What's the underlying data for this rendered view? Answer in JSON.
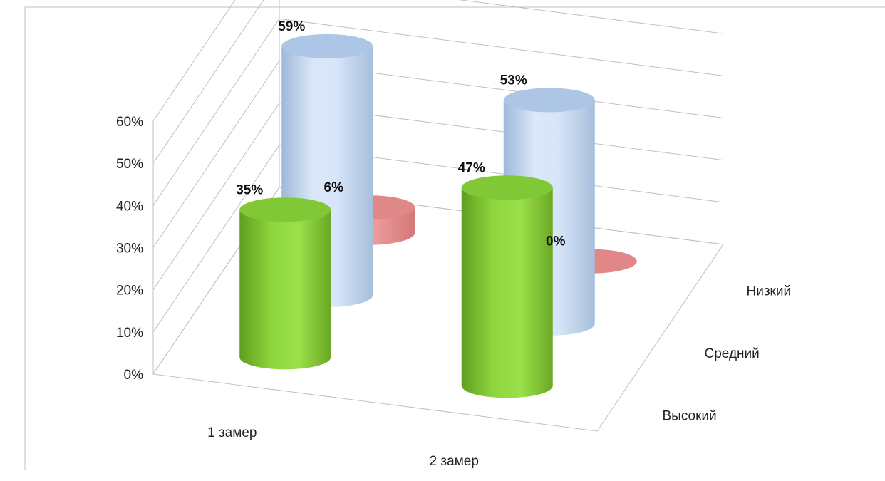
{
  "chart_data": {
    "type": "bar",
    "style": "3d-cylinder",
    "categories": [
      "1 замер",
      "2 замер"
    ],
    "series": [
      {
        "name": "Высокий",
        "values": [
          35,
          47
        ],
        "labels": [
          "35%",
          "47%"
        ],
        "color": "#8dd63c"
      },
      {
        "name": "Средний",
        "values": [
          59,
          53
        ],
        "labels": [
          "59%",
          "53%"
        ],
        "color": "#c7dbf6"
      },
      {
        "name": "Низкий",
        "values": [
          6,
          0
        ],
        "labels": [
          "6%",
          "0%"
        ],
        "color": "#e88c8c"
      }
    ],
    "y_ticks": [
      "0%",
      "10%",
      "20%",
      "30%",
      "40%",
      "50%",
      "60%"
    ],
    "ylim": [
      0,
      60
    ],
    "grid": true,
    "legend": "none"
  }
}
